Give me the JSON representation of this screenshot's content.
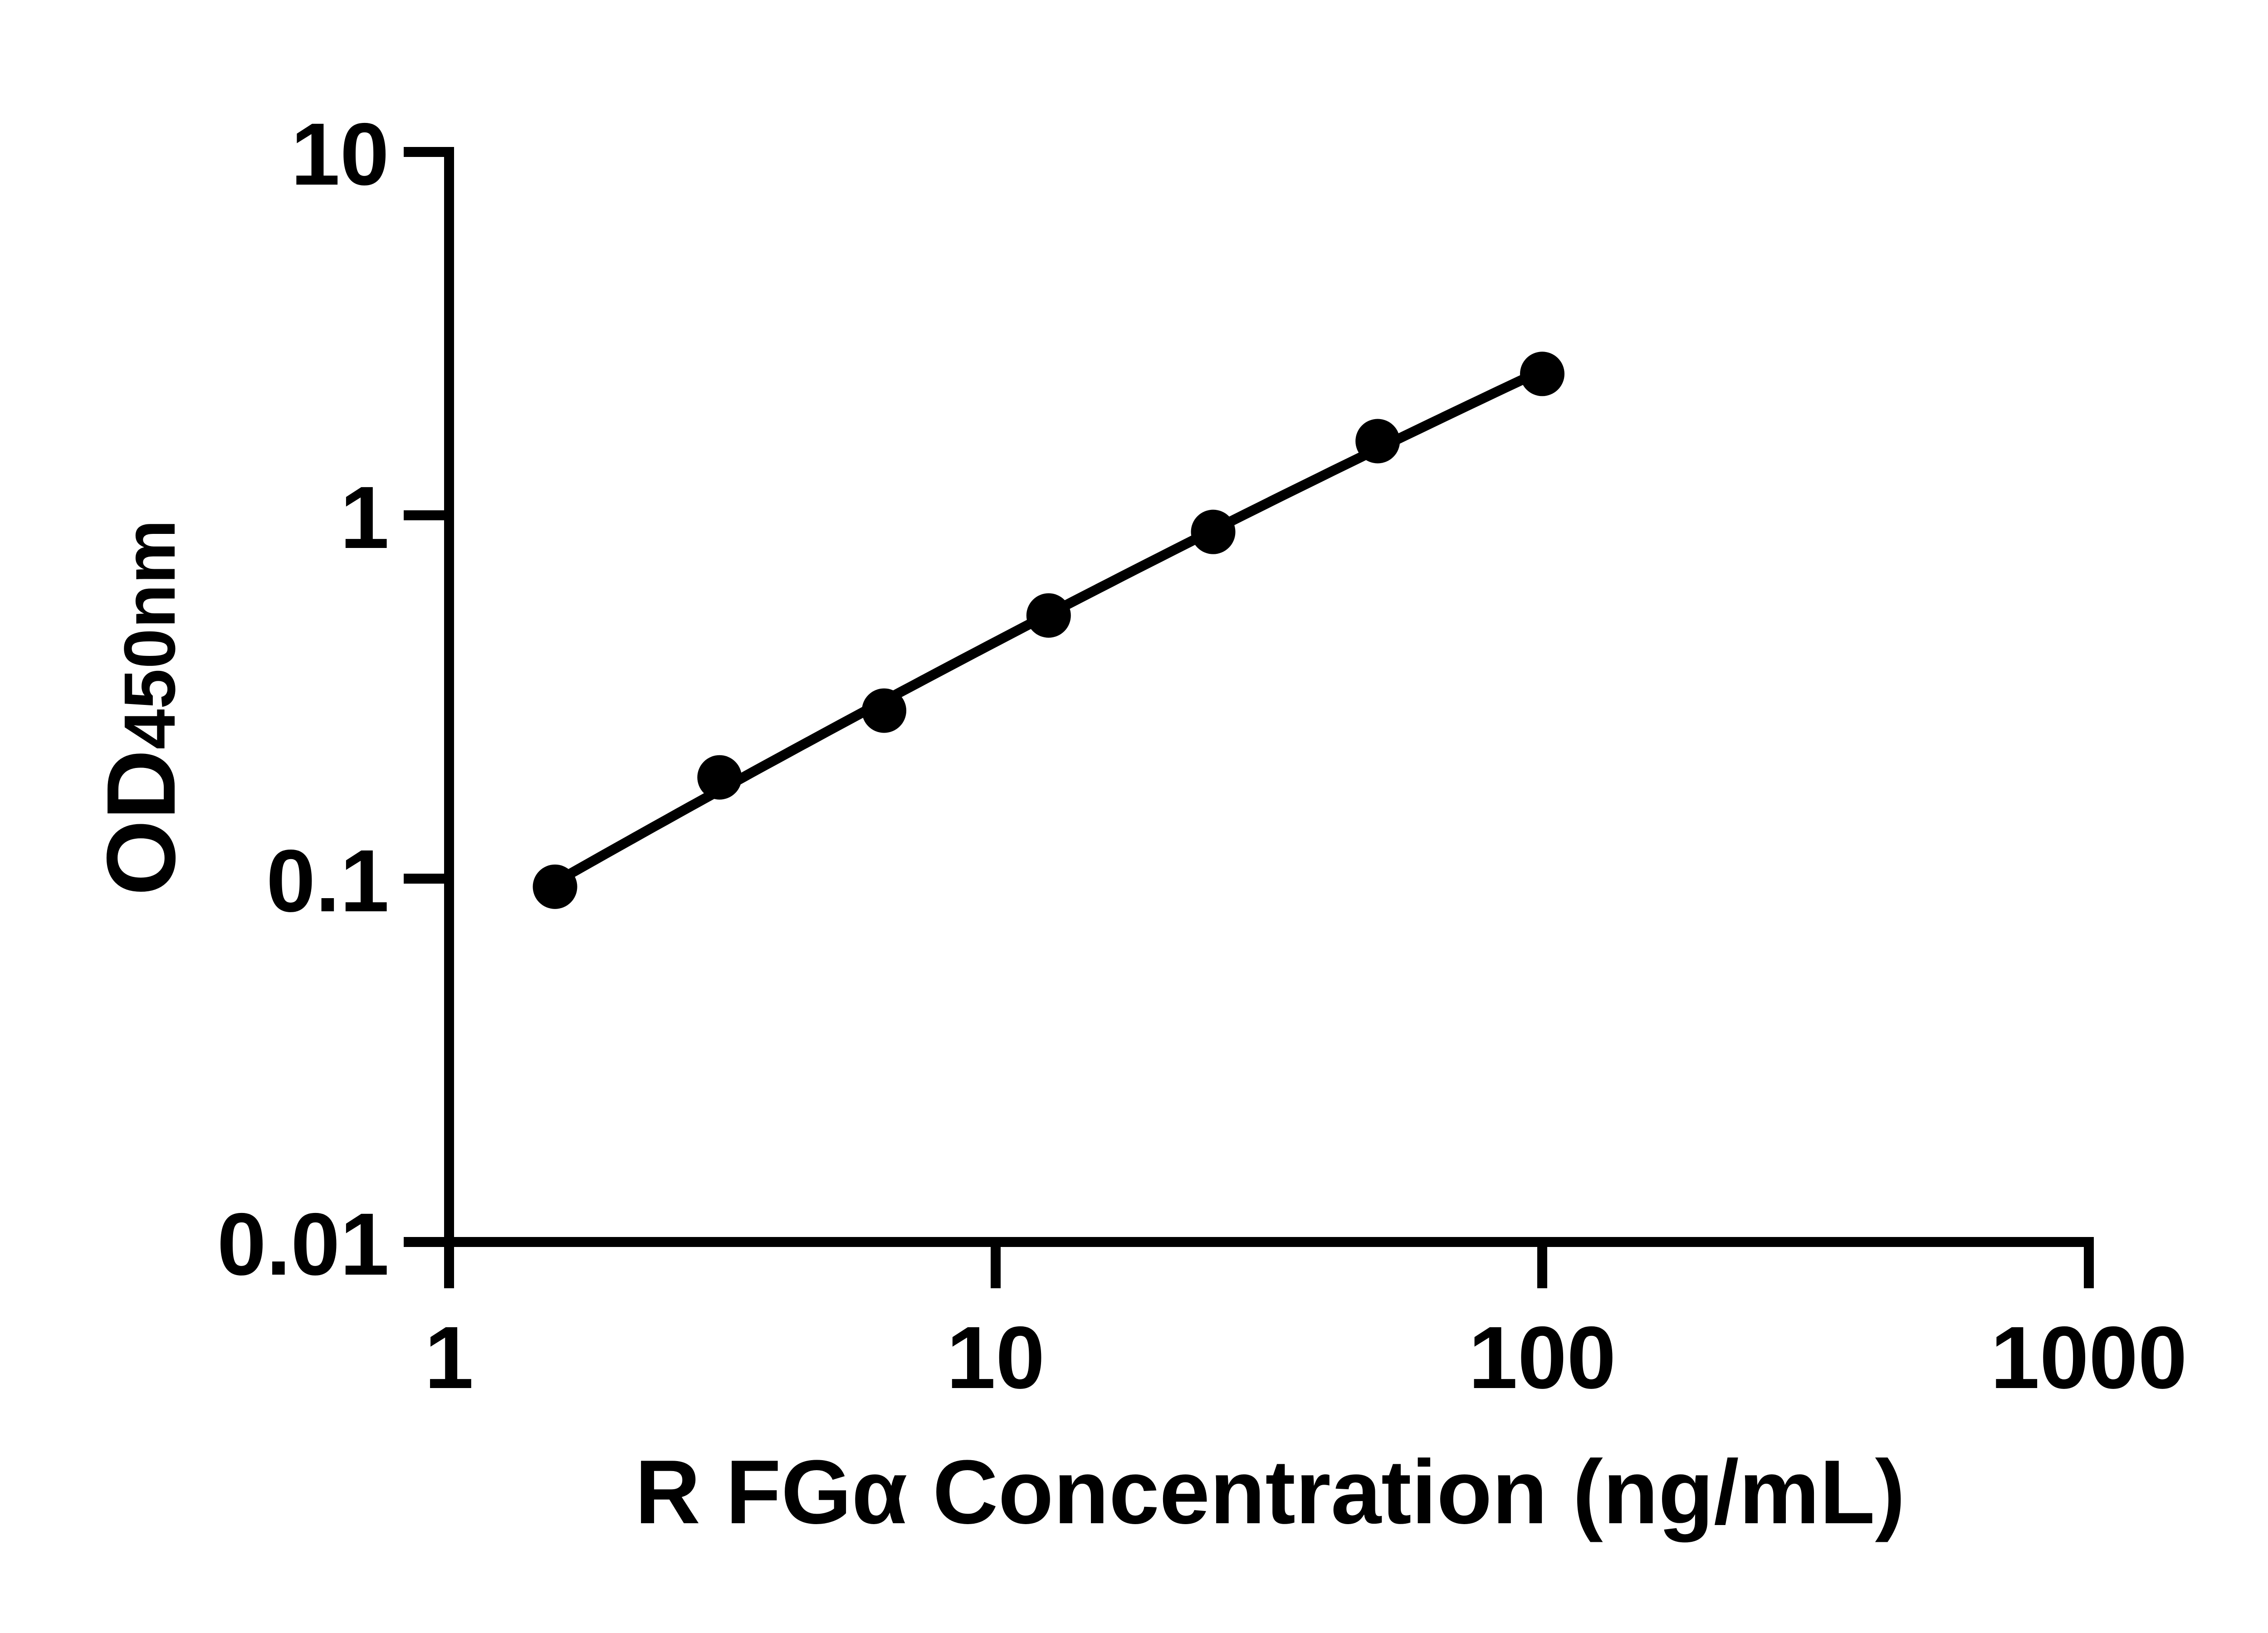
{
  "page": {
    "background_color": "#FFFFFF",
    "foreground_color": "#000000"
  },
  "chart_data": {
    "type": "scatter",
    "title": "",
    "xlabel": "R FGα Concentration (ng/mL)",
    "ylabel": "OD450nm",
    "x_axis": {
      "label": "R FGα Concentration (ng/mL)",
      "scale": "log10",
      "range": [
        1,
        1000
      ],
      "ticks": [
        1,
        10,
        100,
        1000
      ],
      "tick_labels": [
        "1",
        "10",
        "100",
        "1000"
      ]
    },
    "y_axis": {
      "label": "OD450nm",
      "label_main": "OD",
      "label_sub": "450nm",
      "scale": "log10",
      "range": [
        0.01,
        10
      ],
      "ticks": [
        10,
        1,
        0.1,
        0.01
      ],
      "tick_labels": [
        "10",
        "1",
        "0.1",
        "0.01"
      ]
    },
    "series": [
      {
        "name": "standard-curve-points",
        "marker": "filled-circle",
        "color": "#000000",
        "x": [
          1.5625,
          3.125,
          6.25,
          12.5,
          25,
          50,
          100
        ],
        "y": [
          0.095,
          0.19,
          0.29,
          0.53,
          0.9,
          1.6,
          2.45
        ]
      }
    ],
    "trendline": {
      "type": "smooth-fit",
      "color": "#000000",
      "note": "smooth fitted standard curve through the points in log-log space"
    },
    "legend": {
      "visible": false
    },
    "grid": {
      "visible": false
    }
  }
}
